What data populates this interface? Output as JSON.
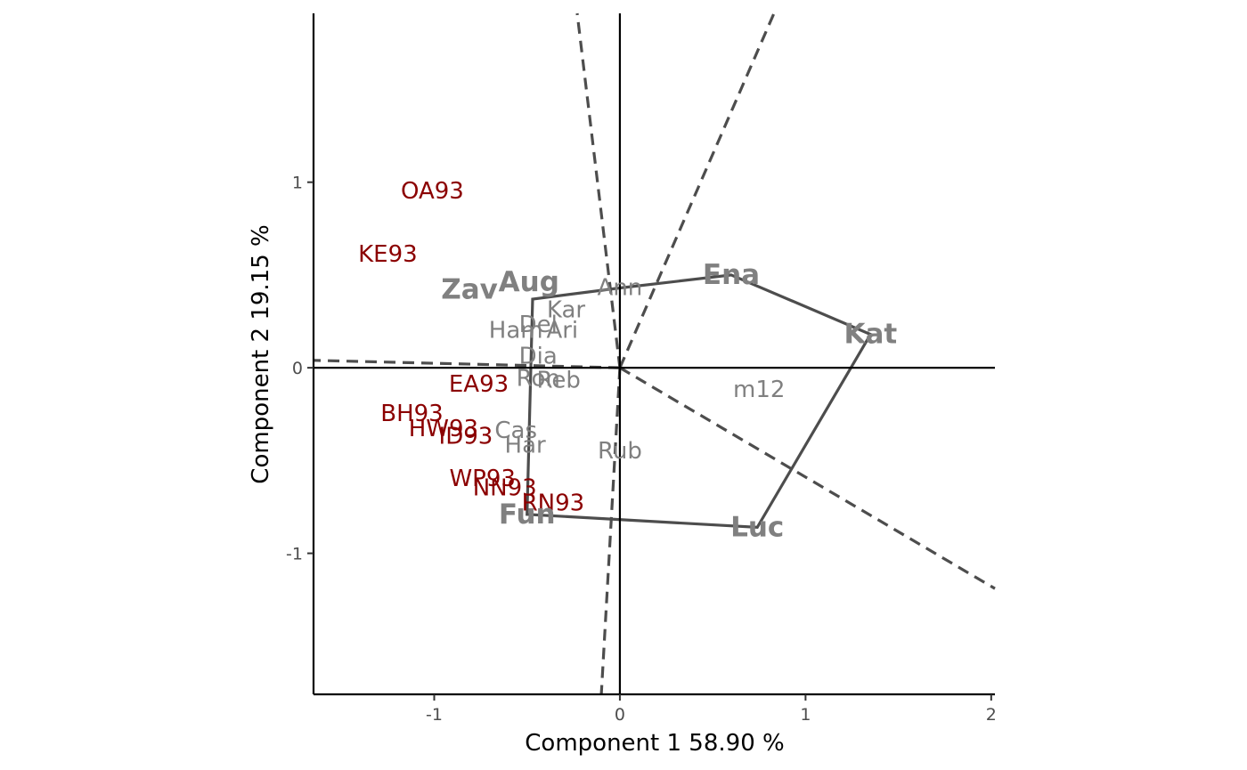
{
  "chart_data": {
    "type": "scatter",
    "title": "",
    "xlabel": "Component 1 58.90 %",
    "ylabel": "Component 2 19.15 %",
    "xlim": [
      -1.65,
      2.02
    ],
    "ylim": [
      -1.76,
      1.91
    ],
    "x_ticks": [
      -1,
      0,
      1,
      2
    ],
    "x_tick_labels": [
      "-1",
      "0",
      "1",
      "2"
    ],
    "y_ticks": [
      -1,
      0,
      1
    ],
    "y_tick_labels": [
      "-1",
      "0",
      "1"
    ],
    "grid": false,
    "environments": [
      {
        "name": "OA93",
        "x": -1.01,
        "y": 0.95
      },
      {
        "name": "KE93",
        "x": -1.25,
        "y": 0.61
      },
      {
        "name": "EA93",
        "x": -0.76,
        "y": -0.09
      },
      {
        "name": "BH93",
        "x": -1.12,
        "y": -0.25
      },
      {
        "name": "HW93",
        "x": -0.95,
        "y": -0.33
      },
      {
        "name": "ID93",
        "x": -0.83,
        "y": -0.37
      },
      {
        "name": "WP93",
        "x": -0.74,
        "y": -0.6
      },
      {
        "name": "NN93",
        "x": -0.62,
        "y": -0.65
      },
      {
        "name": "RN93",
        "x": -0.36,
        "y": -0.73
      }
    ],
    "genotypes": [
      {
        "name": "Ena",
        "x": 0.6,
        "y": 0.5,
        "vertex": true
      },
      {
        "name": "Kat",
        "x": 1.35,
        "y": 0.18,
        "vertex": true
      },
      {
        "name": "Luc",
        "x": 0.74,
        "y": -0.86,
        "vertex": true
      },
      {
        "name": "Fun",
        "x": -0.5,
        "y": -0.79,
        "vertex": true
      },
      {
        "name": "Zav",
        "x": -0.81,
        "y": 0.42,
        "vertex": true
      },
      {
        "name": "Aug",
        "x": -0.49,
        "y": 0.46,
        "vertex": true
      },
      {
        "name": "Ann",
        "x": 0.0,
        "y": 0.43,
        "vertex": false
      },
      {
        "name": "Kar",
        "x": -0.29,
        "y": 0.31,
        "vertex": false
      },
      {
        "name": "Del",
        "x": -0.44,
        "y": 0.23,
        "vertex": false
      },
      {
        "name": "Ari",
        "x": -0.31,
        "y": 0.2,
        "vertex": false
      },
      {
        "name": "Ham",
        "x": -0.56,
        "y": 0.2,
        "vertex": false
      },
      {
        "name": "Dia",
        "x": -0.44,
        "y": 0.06,
        "vertex": false
      },
      {
        "name": "Ron",
        "x": -0.44,
        "y": -0.06,
        "vertex": false
      },
      {
        "name": "Reb",
        "x": -0.33,
        "y": -0.07,
        "vertex": false
      },
      {
        "name": "Cas",
        "x": -0.56,
        "y": -0.34,
        "vertex": false
      },
      {
        "name": "Har",
        "x": -0.51,
        "y": -0.42,
        "vertex": false
      },
      {
        "name": "Rub",
        "x": 0.0,
        "y": -0.45,
        "vertex": false
      },
      {
        "name": "m12",
        "x": 0.75,
        "y": -0.12,
        "vertex": false
      }
    ],
    "hull": [
      {
        "x": 0.6,
        "y": 0.5
      },
      {
        "x": 1.35,
        "y": 0.18
      },
      {
        "x": 0.74,
        "y": -0.86
      },
      {
        "x": -0.5,
        "y": -0.79
      },
      {
        "x": -0.47,
        "y": 0.37
      },
      {
        "x": 0.0,
        "y": 0.43
      }
    ],
    "sector_lines": [
      {
        "x": -1.65,
        "y": 0.04
      },
      {
        "x": 0.83,
        "y": 1.91
      },
      {
        "x": -0.23,
        "y": 1.91
      },
      {
        "x": 2.02,
        "y": -1.19
      },
      {
        "x": -0.1,
        "y": -1.76
      }
    ],
    "colors": {
      "environment": "#8b0000",
      "genotype": "#808080",
      "hull": "#4d4d4d",
      "axis": "#000000"
    }
  }
}
